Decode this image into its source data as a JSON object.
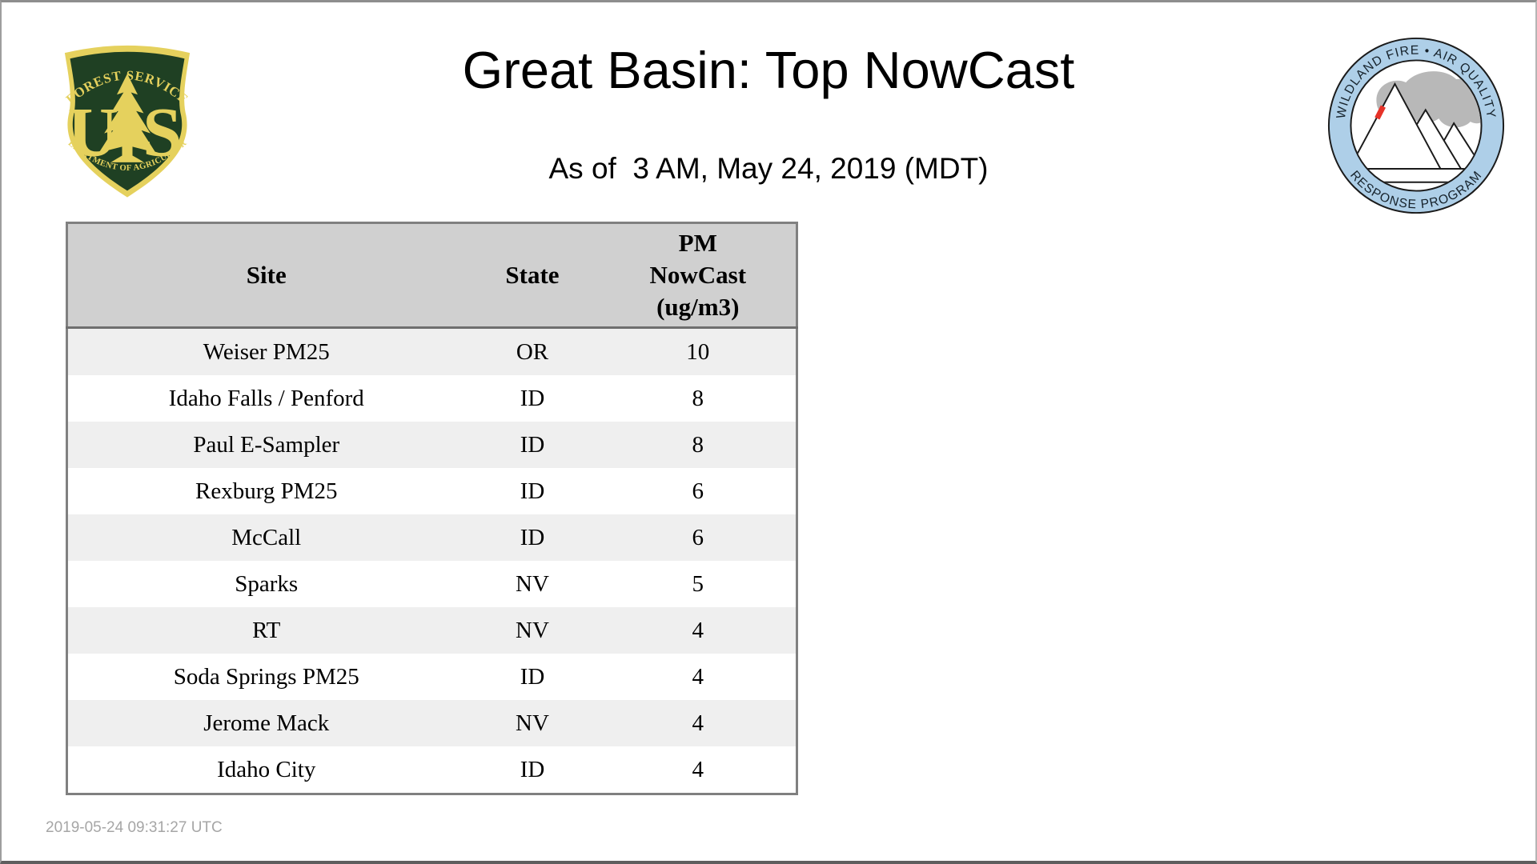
{
  "page": {
    "title": "Great Basin: Top NowCast",
    "subtitle": "As of  3 AM, May 24, 2019 (MDT)",
    "footer_timestamp": "2019-05-24 09:31:27 UTC"
  },
  "left_logo": {
    "top_text": "FOREST SERVICE",
    "letter_u": "U",
    "letter_s": "S",
    "bottom_text": "DEPARTMENT OF AGRICULTURE",
    "green": "#1f4023",
    "gold": "#e5d15d"
  },
  "right_logo": {
    "top_text": "WILDLAND FIRE • AIR QUALITY",
    "bottom_text": "RESPONSE PROGRAM",
    "ring_color": "#aecfe8",
    "smoke_color": "#b8b8b8",
    "flame_color": "#e63228"
  },
  "table": {
    "headers": {
      "site": "Site",
      "state": "State",
      "value_line1": "PM",
      "value_line2": "NowCast",
      "value_line3": "(ug/m3)"
    },
    "header_bg": "#d0d0d0",
    "alt_row_bg": "#efefef",
    "border_color": "#808080",
    "rows": [
      {
        "site": "Weiser PM25",
        "state": "OR",
        "value": "10"
      },
      {
        "site": "Idaho Falls / Penford",
        "state": "ID",
        "value": "8"
      },
      {
        "site": "Paul E-Sampler",
        "state": "ID",
        "value": "8"
      },
      {
        "site": "Rexburg PM25",
        "state": "ID",
        "value": "6"
      },
      {
        "site": "McCall",
        "state": "ID",
        "value": "6"
      },
      {
        "site": "Sparks",
        "state": "NV",
        "value": "5"
      },
      {
        "site": "RT",
        "state": "NV",
        "value": "4"
      },
      {
        "site": "Soda Springs PM25",
        "state": "ID",
        "value": "4"
      },
      {
        "site": "Jerome Mack",
        "state": "NV",
        "value": "4"
      },
      {
        "site": "Idaho City",
        "state": "ID",
        "value": "4"
      }
    ]
  }
}
